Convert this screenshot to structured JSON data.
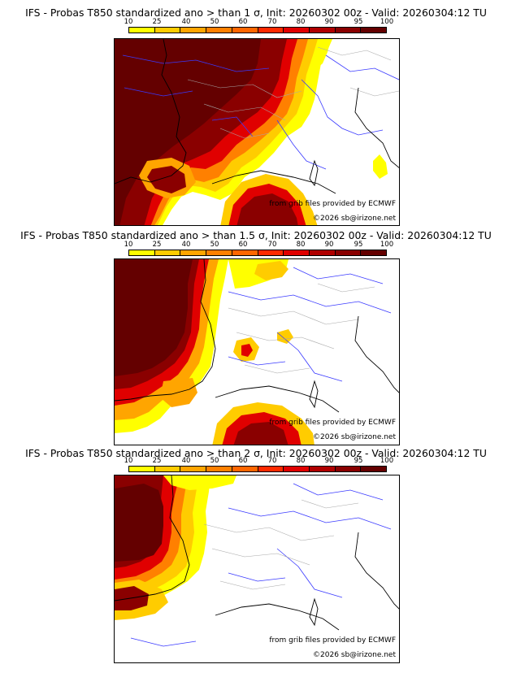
{
  "panels": [
    {
      "title": "IFS - Probas T850  standardized ano > than 1 σ, Init: 20260302 00z - Valid: 20260304:12 TU",
      "credit_line1": "from grib files provided by ECMWF",
      "credit_line2": "©2026 sb@irizone.net"
    },
    {
      "title": "IFS - Probas T850  standardized ano > than 1.5 σ, Init: 20260302 00z - Valid: 20260304:12 TU",
      "credit_line1": "from grib files provided by ECMWF",
      "credit_line2": "©2026 sb@irizone.net"
    },
    {
      "title": "IFS - Probas T850  standardized ano > than 2 σ, Init: 20260302 00z - Valid: 20260304:12 TU",
      "credit_line1": "from grib files provided by ECMWF",
      "credit_line2": "©2026 sb@irizone.net"
    }
  ],
  "colorbar": {
    "levels": [
      "10",
      "25",
      "40",
      "50",
      "60",
      "70",
      "80",
      "90",
      "95",
      "100"
    ],
    "colors": [
      "#ffff00",
      "#ffcc00",
      "#ffa500",
      "#ff8000",
      "#ff6600",
      "#ff2a00",
      "#e00000",
      "#b00000",
      "#8a0000",
      "#640000"
    ]
  },
  "map_colors": {
    "border": "#000000",
    "internal_border": "#a8a8a8",
    "river": "#3a3aff",
    "coast": "#000000"
  }
}
